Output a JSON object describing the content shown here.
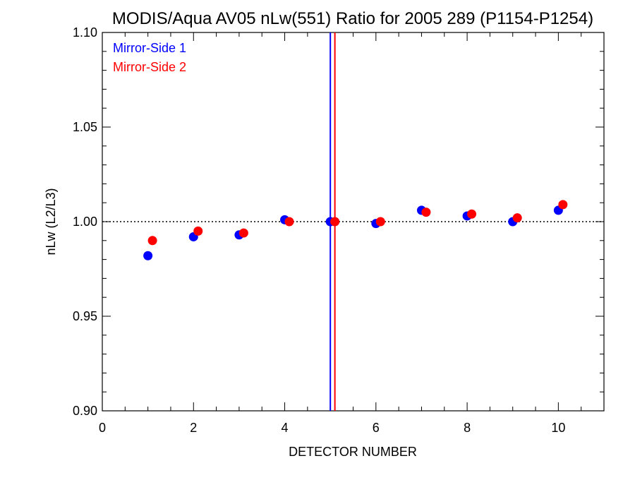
{
  "chart_data": {
    "type": "scatter",
    "title": "MODIS/Aqua AV05 nLw(551) Ratio for 2005 289 (P1154-P1254)",
    "xlabel": "DETECTOR NUMBER",
    "ylabel": "nLw (L2/L3)",
    "xlim": [
      0,
      11
    ],
    "ylim": [
      0.9,
      1.1
    ],
    "xticks": [
      0,
      2,
      4,
      6,
      8,
      10
    ],
    "xtick_labels": [
      "0",
      "2",
      "4",
      "6",
      "8",
      "10"
    ],
    "yticks": [
      0.9,
      0.95,
      1.0,
      1.05,
      1.1
    ],
    "ytick_labels": [
      "0.90",
      "0.95",
      "1.00",
      "1.05",
      "1.10"
    ],
    "reference_line_y": 1.0,
    "legend_position": "top-left",
    "series": [
      {
        "name": "Mirror-Side 1",
        "color": "#0000ff",
        "x": [
          1,
          2,
          3,
          4,
          5,
          6,
          7,
          8,
          9,
          10
        ],
        "y": [
          0.982,
          0.992,
          0.993,
          1.001,
          1.0,
          0.999,
          1.006,
          1.003,
          1.0,
          1.006
        ],
        "marker_line_x": 5.0
      },
      {
        "name": "Mirror-Side 2",
        "color": "#ff0000",
        "x": [
          1.1,
          2.1,
          3.1,
          4.1,
          5.1,
          6.1,
          7.1,
          8.1,
          9.1,
          10.1
        ],
        "y": [
          0.99,
          0.995,
          0.994,
          1.0,
          1.0,
          1.0,
          1.005,
          1.004,
          1.002,
          1.009
        ],
        "marker_line_x": 5.1
      }
    ]
  }
}
